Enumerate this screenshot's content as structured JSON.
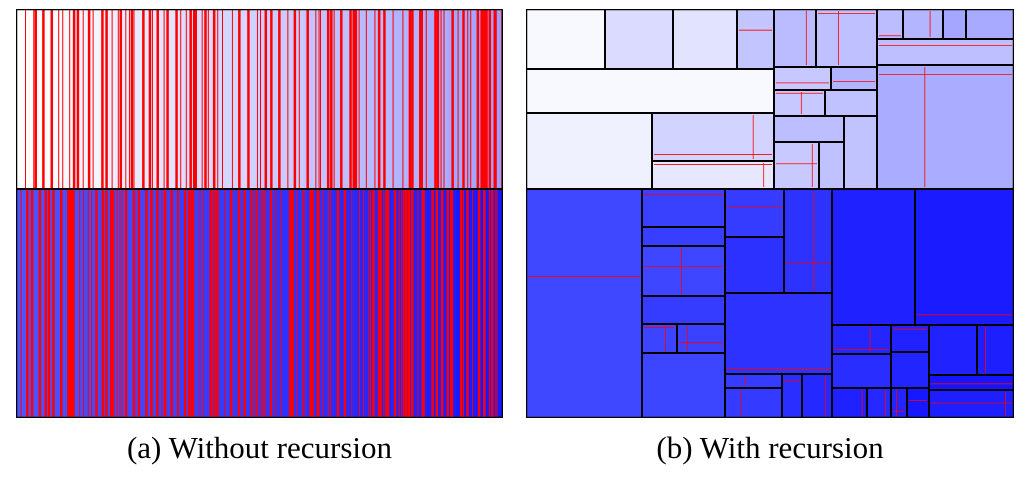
{
  "figure": {
    "panels": [
      {
        "id": "a",
        "caption": "(a) Without recursion"
      },
      {
        "id": "b",
        "caption": "(b) With recursion"
      }
    ],
    "colors": {
      "boundary": "#ff0000",
      "border": "#000000",
      "top_light": "#ffffff",
      "top_dark": "#9a9dff",
      "bottom_light": "#4a55ff",
      "bottom_dark": "#1414ff"
    }
  }
}
